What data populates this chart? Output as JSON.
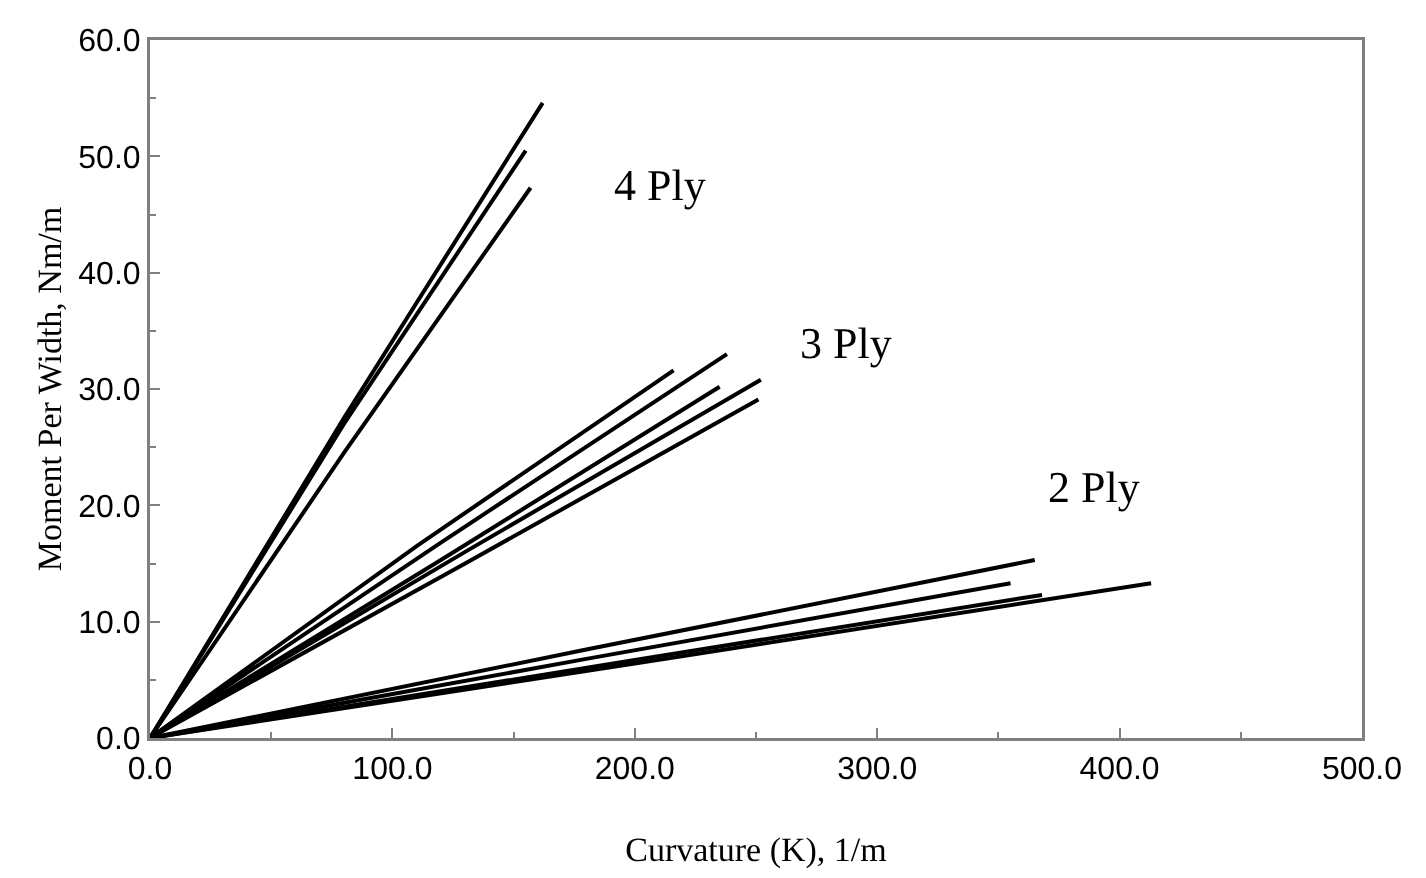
{
  "chart_data": {
    "type": "line",
    "xlabel": "Curvature (K), 1/m",
    "ylabel": "Moment Per Width, Nm/m",
    "xlim": [
      0,
      500
    ],
    "ylim": [
      0,
      60
    ],
    "xticks": [
      {
        "value": 0,
        "label": "0.0"
      },
      {
        "value": 100,
        "label": "100.0"
      },
      {
        "value": 200,
        "label": "200.0"
      },
      {
        "value": 300,
        "label": "300.0"
      },
      {
        "value": 400,
        "label": "400.0"
      },
      {
        "value": 500,
        "label": "500.0"
      }
    ],
    "yticks": [
      {
        "value": 0,
        "label": "0.0"
      },
      {
        "value": 10,
        "label": "10.0"
      },
      {
        "value": 20,
        "label": "20.0"
      },
      {
        "value": 30,
        "label": "30.0"
      },
      {
        "value": 40,
        "label": "40.0"
      },
      {
        "value": 50,
        "label": "50.0"
      },
      {
        "value": 60,
        "label": "60.0"
      }
    ],
    "grid": false,
    "marker": "none",
    "line_style": "solid",
    "series": [
      {
        "color": "#000000",
        "x": [
          0,
          80,
          162
        ],
        "values": [
          0,
          27.5,
          54.6
        ]
      },
      {
        "color": "#000000",
        "x": [
          0,
          80,
          155
        ],
        "values": [
          0,
          27,
          50.5
        ]
      },
      {
        "color": "#000000",
        "x": [
          0,
          80,
          157
        ],
        "values": [
          0,
          24.5,
          47.3
        ]
      },
      {
        "color": "#000000",
        "x": [
          0,
          110,
          216
        ],
        "values": [
          0,
          16.5,
          31.6
        ]
      },
      {
        "color": "#000000",
        "x": [
          0,
          120,
          238
        ],
        "values": [
          0,
          16.8,
          33
        ]
      },
      {
        "color": "#000000",
        "x": [
          0,
          120,
          235
        ],
        "values": [
          0,
          15.3,
          30.2
        ]
      },
      {
        "color": "#000000",
        "x": [
          0,
          130,
          252
        ],
        "values": [
          0,
          16,
          30.8
        ]
      },
      {
        "color": "#000000",
        "x": [
          0,
          130,
          251
        ],
        "values": [
          0,
          15,
          29.1
        ]
      },
      {
        "color": "#000000",
        "x": [
          0,
          180,
          365
        ],
        "values": [
          0,
          7.6,
          15.3
        ]
      },
      {
        "color": "#000000",
        "x": [
          0,
          180,
          355
        ],
        "values": [
          0,
          6.8,
          13.3
        ]
      },
      {
        "color": "#000000",
        "x": [
          0,
          200,
          368
        ],
        "values": [
          0,
          6.7,
          12.3
        ]
      },
      {
        "color": "#000000",
        "x": [
          0,
          200,
          413
        ],
        "values": [
          0,
          6.4,
          13.3
        ]
      }
    ],
    "annotations": [
      "4 Ply",
      "3 Ply",
      "2 Ply"
    ]
  }
}
